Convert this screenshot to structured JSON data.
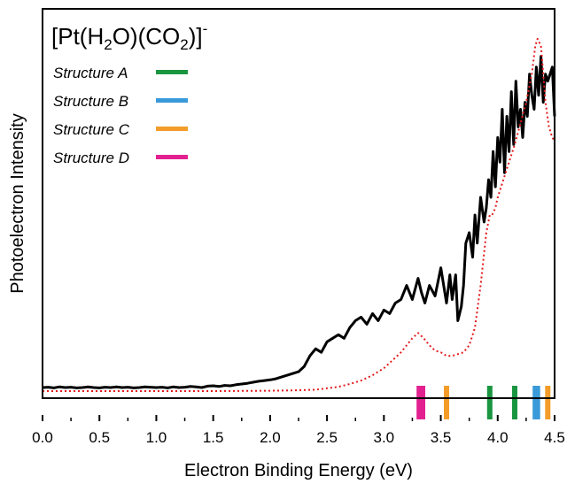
{
  "chart_data": {
    "type": "line",
    "title": {
      "prefix": "[Pt(H",
      "sub1": "2",
      "mid": "O)(CO",
      "sub2": "2",
      "suffix": ")]",
      "sup": "-"
    },
    "xlabel": "Electron Binding Energy (eV)",
    "ylabel": "Photoelectron Intensity",
    "xlim": [
      0.0,
      4.5
    ],
    "ylim": [
      0,
      1.05
    ],
    "x_ticks": [
      0.0,
      0.5,
      1.0,
      1.5,
      2.0,
      2.5,
      3.0,
      3.5,
      4.0,
      4.5
    ],
    "x_tick_labels": [
      "0.0",
      "0.5",
      "1.0",
      "1.5",
      "2.0",
      "2.5",
      "3.0",
      "3.5",
      "4.0",
      "4.5"
    ],
    "grid": false,
    "legend_position": "top-left",
    "series": [
      {
        "style": "solid",
        "color": "#000000",
        "x": [
          0.0,
          0.05,
          0.1,
          0.15,
          0.2,
          0.25,
          0.3,
          0.35,
          0.4,
          0.45,
          0.5,
          0.55,
          0.6,
          0.65,
          0.7,
          0.75,
          0.8,
          0.85,
          0.9,
          0.95,
          1.0,
          1.05,
          1.1,
          1.15,
          1.2,
          1.25,
          1.3,
          1.35,
          1.4,
          1.45,
          1.5,
          1.55,
          1.6,
          1.65,
          1.7,
          1.75,
          1.8,
          1.85,
          1.9,
          1.95,
          2.0,
          2.05,
          2.1,
          2.15,
          2.2,
          2.25,
          2.3,
          2.35,
          2.4,
          2.45,
          2.5,
          2.55,
          2.6,
          2.65,
          2.7,
          2.75,
          2.8,
          2.85,
          2.9,
          2.95,
          3.0,
          3.05,
          3.1,
          3.15,
          3.2,
          3.25,
          3.3,
          3.33,
          3.36,
          3.4,
          3.45,
          3.5,
          3.55,
          3.58,
          3.6,
          3.63,
          3.65,
          3.68,
          3.7,
          3.72,
          3.75,
          3.78,
          3.8,
          3.82,
          3.85,
          3.88,
          3.9,
          3.92,
          3.94,
          3.96,
          3.98,
          4.0,
          4.02,
          4.04,
          4.06,
          4.08,
          4.1,
          4.12,
          4.14,
          4.16,
          4.18,
          4.2,
          4.22,
          4.24,
          4.26,
          4.28,
          4.3,
          4.32,
          4.34,
          4.36,
          4.38,
          4.4,
          4.42,
          4.44,
          4.46,
          4.48,
          4.5
        ],
        "values": [
          0.01,
          0.011,
          0.009,
          0.012,
          0.01,
          0.011,
          0.009,
          0.01,
          0.012,
          0.01,
          0.009,
          0.011,
          0.01,
          0.012,
          0.01,
          0.011,
          0.009,
          0.01,
          0.012,
          0.011,
          0.01,
          0.011,
          0.009,
          0.012,
          0.01,
          0.011,
          0.013,
          0.012,
          0.01,
          0.014,
          0.015,
          0.013,
          0.016,
          0.015,
          0.018,
          0.02,
          0.022,
          0.025,
          0.028,
          0.03,
          0.032,
          0.035,
          0.04,
          0.045,
          0.05,
          0.055,
          0.07,
          0.1,
          0.12,
          0.11,
          0.14,
          0.15,
          0.16,
          0.15,
          0.18,
          0.2,
          0.21,
          0.19,
          0.22,
          0.2,
          0.23,
          0.22,
          0.25,
          0.26,
          0.3,
          0.26,
          0.32,
          0.28,
          0.25,
          0.3,
          0.27,
          0.35,
          0.25,
          0.33,
          0.26,
          0.33,
          0.2,
          0.24,
          0.3,
          0.42,
          0.45,
          0.38,
          0.5,
          0.42,
          0.55,
          0.48,
          0.52,
          0.6,
          0.55,
          0.68,
          0.58,
          0.72,
          0.65,
          0.8,
          0.62,
          0.78,
          0.68,
          0.85,
          0.7,
          0.88,
          0.75,
          0.8,
          0.72,
          0.82,
          0.78,
          0.9,
          0.84,
          0.8,
          0.92,
          0.84,
          0.95,
          0.82,
          0.9,
          0.88,
          0.9,
          0.92,
          0.78
        ]
      },
      {
        "style": "dotted",
        "color": "#e41a1c",
        "x": [
          0.0,
          0.5,
          1.0,
          1.5,
          2.0,
          2.2,
          2.4,
          2.5,
          2.6,
          2.7,
          2.8,
          2.9,
          3.0,
          3.05,
          3.1,
          3.15,
          3.2,
          3.25,
          3.3,
          3.35,
          3.4,
          3.45,
          3.5,
          3.55,
          3.6,
          3.65,
          3.7,
          3.75,
          3.8,
          3.85,
          3.9,
          3.93,
          3.95,
          3.98,
          4.0,
          4.05,
          4.1,
          4.15,
          4.2,
          4.25,
          4.3,
          4.33,
          4.35,
          4.38,
          4.4,
          4.42,
          4.45,
          4.48,
          4.5
        ],
        "values": [
          0.0,
          0.0,
          0.0,
          0.0,
          0.001,
          0.002,
          0.004,
          0.008,
          0.012,
          0.02,
          0.03,
          0.045,
          0.065,
          0.08,
          0.095,
          0.11,
          0.13,
          0.15,
          0.165,
          0.15,
          0.13,
          0.115,
          0.11,
          0.1,
          0.1,
          0.105,
          0.11,
          0.13,
          0.18,
          0.3,
          0.45,
          0.5,
          0.5,
          0.52,
          0.55,
          0.6,
          0.65,
          0.7,
          0.76,
          0.82,
          0.9,
          0.98,
          1.0,
          0.98,
          0.9,
          0.82,
          0.75,
          0.72,
          0.71
        ]
      }
    ],
    "legend": [
      {
        "label": "Structure A",
        "color": "#1a9641"
      },
      {
        "label": "Structure B",
        "color": "#3a9ad9"
      },
      {
        "label": "Structure C",
        "color": "#f39c29"
      },
      {
        "label": "Structure  D",
        "color": "#e3208f"
      }
    ],
    "stick_markers": [
      {
        "structure": "Structure  D",
        "x": 3.31,
        "color": "#e3208f"
      },
      {
        "structure": "Structure  D",
        "x": 3.34,
        "color": "#e3208f"
      },
      {
        "structure": "Structure C",
        "x": 3.55,
        "color": "#f39c29"
      },
      {
        "structure": "Structure A",
        "x": 3.93,
        "color": "#1a9641"
      },
      {
        "structure": "Structure A",
        "x": 4.15,
        "color": "#1a9641"
      },
      {
        "structure": "Structure B",
        "x": 4.33,
        "color": "#3a9ad9"
      },
      {
        "structure": "Structure B",
        "x": 4.35,
        "color": "#3a9ad9"
      },
      {
        "structure": "Structure C",
        "x": 4.44,
        "color": "#f39c29"
      }
    ]
  }
}
